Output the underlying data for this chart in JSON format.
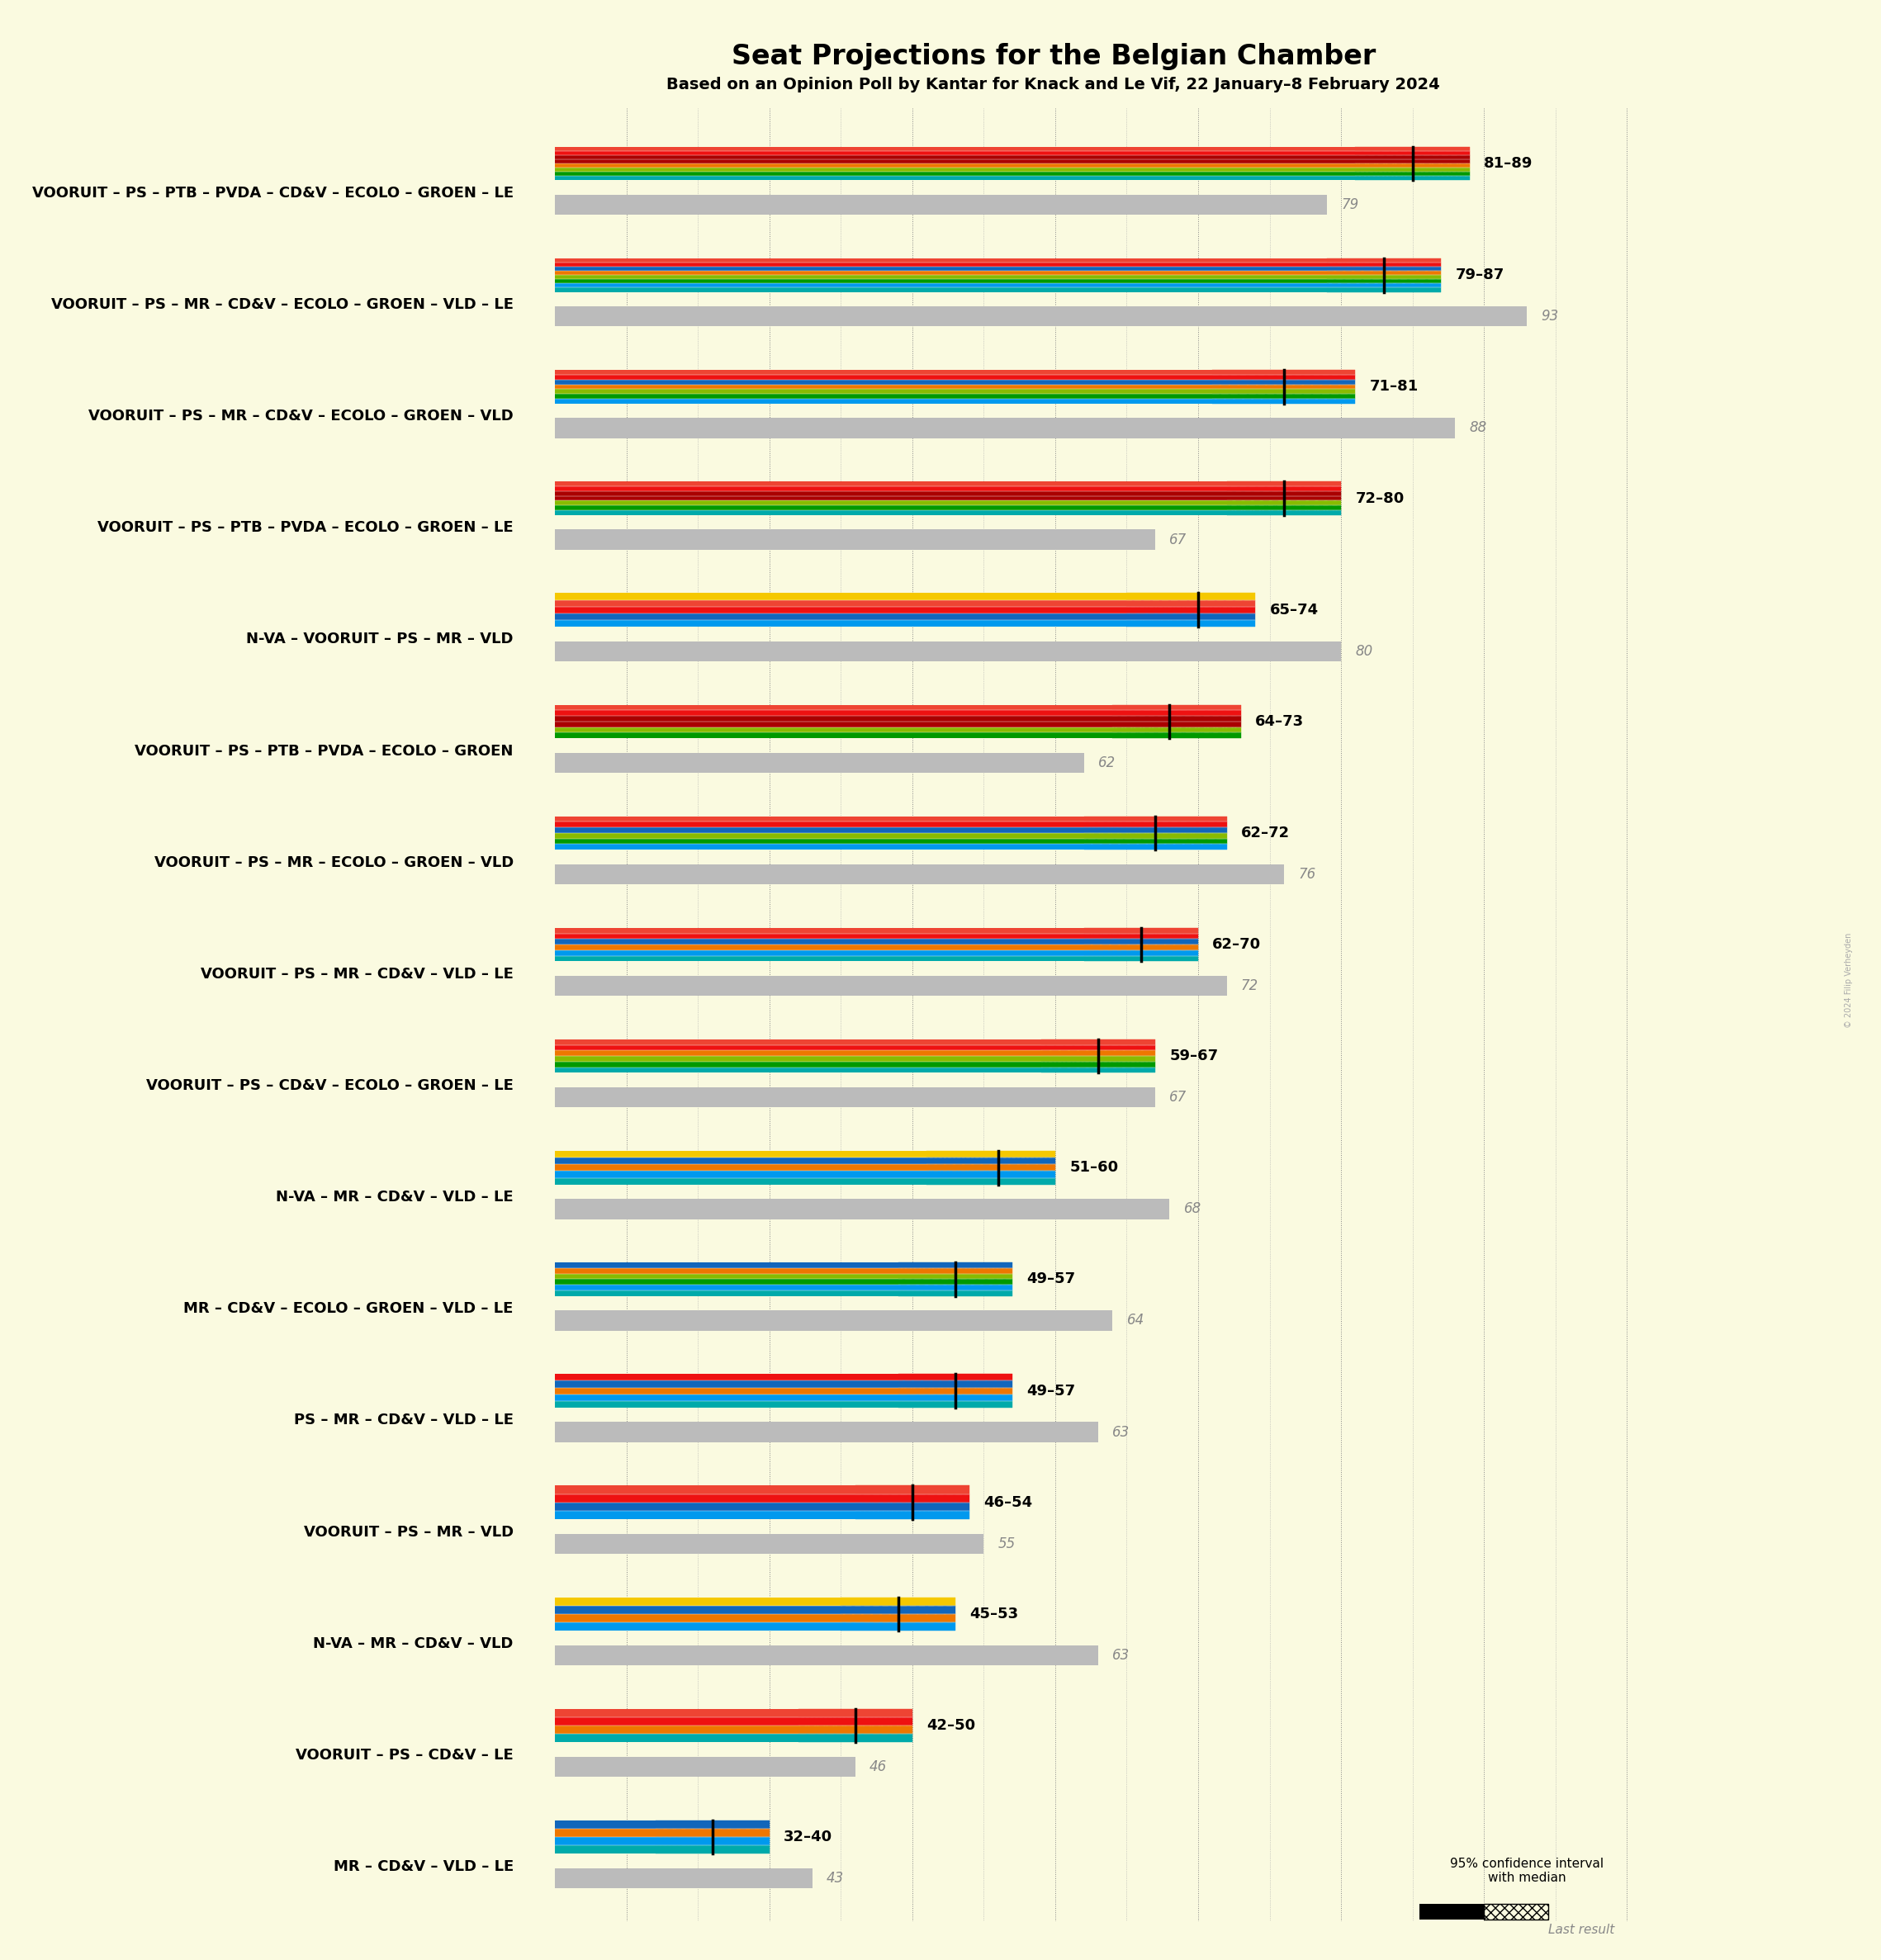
{
  "title": "Seat Projections for the Belgian Chamber",
  "subtitle": "Based on an Opinion Poll by Kantar for Knack and Le Vif, 22 January–8 February 2024",
  "background_color": "#FAFAE0",
  "coalitions": [
    {
      "name": "VOORUIT – PS – PTB – PVDA – CD&V – ECOLO – GROEN – LE",
      "low": 81,
      "high": 89,
      "median": 85,
      "last": 79,
      "underline": false,
      "parties": [
        "VOORUIT",
        "PS",
        "PTB",
        "PVDA",
        "CD&V",
        "ECOLO",
        "GROEN",
        "LE"
      ]
    },
    {
      "name": "VOORUIT – PS – MR – CD&V – ECOLO – GROEN – VLD – LE",
      "low": 79,
      "high": 87,
      "median": 83,
      "last": 93,
      "underline": false,
      "parties": [
        "VOORUIT",
        "PS",
        "MR",
        "CD&V",
        "ECOLO",
        "GROEN",
        "VLD",
        "LE"
      ]
    },
    {
      "name": "VOORUIT – PS – MR – CD&V – ECOLO – GROEN – VLD",
      "low": 71,
      "high": 81,
      "median": 76,
      "last": 88,
      "underline": true,
      "parties": [
        "VOORUIT",
        "PS",
        "MR",
        "CD&V",
        "ECOLO",
        "GROEN",
        "VLD"
      ]
    },
    {
      "name": "VOORUIT – PS – PTB – PVDA – ECOLO – GROEN – LE",
      "low": 72,
      "high": 80,
      "median": 76,
      "last": 67,
      "underline": false,
      "parties": [
        "VOORUIT",
        "PS",
        "PTB",
        "PVDA",
        "ECOLO",
        "GROEN",
        "LE"
      ]
    },
    {
      "name": "N-VA – VOORUIT – PS – MR – VLD",
      "low": 65,
      "high": 74,
      "median": 70,
      "last": 80,
      "underline": false,
      "parties": [
        "N-VA",
        "VOORUIT",
        "PS",
        "MR",
        "VLD"
      ]
    },
    {
      "name": "VOORUIT – PS – PTB – PVDA – ECOLO – GROEN",
      "low": 64,
      "high": 73,
      "median": 68,
      "last": 62,
      "underline": false,
      "parties": [
        "VOORUIT",
        "PS",
        "PTB",
        "PVDA",
        "ECOLO",
        "GROEN"
      ]
    },
    {
      "name": "VOORUIT – PS – MR – ECOLO – GROEN – VLD",
      "low": 62,
      "high": 72,
      "median": 67,
      "last": 76,
      "underline": false,
      "parties": [
        "VOORUIT",
        "PS",
        "MR",
        "ECOLO",
        "GROEN",
        "VLD"
      ]
    },
    {
      "name": "VOORUIT – PS – MR – CD&V – VLD – LE",
      "low": 62,
      "high": 70,
      "median": 66,
      "last": 72,
      "underline": false,
      "parties": [
        "VOORUIT",
        "PS",
        "MR",
        "CD&V",
        "VLD",
        "LE"
      ]
    },
    {
      "name": "VOORUIT – PS – CD&V – ECOLO – GROEN – LE",
      "low": 59,
      "high": 67,
      "median": 63,
      "last": 67,
      "underline": false,
      "parties": [
        "VOORUIT",
        "PS",
        "CD&V",
        "ECOLO",
        "GROEN",
        "LE"
      ]
    },
    {
      "name": "N-VA – MR – CD&V – VLD – LE",
      "low": 51,
      "high": 60,
      "median": 56,
      "last": 68,
      "underline": false,
      "parties": [
        "N-VA",
        "MR",
        "CD&V",
        "VLD",
        "LE"
      ]
    },
    {
      "name": "MR – CD&V – ECOLO – GROEN – VLD – LE",
      "low": 49,
      "high": 57,
      "median": 53,
      "last": 64,
      "underline": false,
      "parties": [
        "MR",
        "CD&V",
        "ECOLO",
        "GROEN",
        "VLD",
        "LE"
      ]
    },
    {
      "name": "PS – MR – CD&V – VLD – LE",
      "low": 49,
      "high": 57,
      "median": 53,
      "last": 63,
      "underline": false,
      "parties": [
        "PS",
        "MR",
        "CD&V",
        "VLD",
        "LE"
      ]
    },
    {
      "name": "VOORUIT – PS – MR – VLD",
      "low": 46,
      "high": 54,
      "median": 50,
      "last": 55,
      "underline": false,
      "parties": [
        "VOORUIT",
        "PS",
        "MR",
        "VLD"
      ]
    },
    {
      "name": "N-VA – MR – CD&V – VLD",
      "low": 45,
      "high": 53,
      "median": 49,
      "last": 63,
      "underline": false,
      "parties": [
        "N-VA",
        "MR",
        "CD&V",
        "VLD"
      ]
    },
    {
      "name": "VOORUIT – PS – CD&V – LE",
      "low": 42,
      "high": 50,
      "median": 46,
      "last": 46,
      "underline": false,
      "parties": [
        "VOORUIT",
        "PS",
        "CD&V",
        "LE"
      ]
    },
    {
      "name": "MR – CD&V – VLD – LE",
      "low": 32,
      "high": 40,
      "median": 36,
      "last": 43,
      "underline": false,
      "parties": [
        "MR",
        "CD&V",
        "VLD",
        "LE"
      ]
    }
  ],
  "party_colors": {
    "N-VA": "#F5C800",
    "PS": "#EE1111",
    "MR": "#1166BB",
    "VOORUIT": "#EE4433",
    "CD&V": "#EE7700",
    "ECOLO": "#88BB00",
    "GROEN": "#009900",
    "VLD": "#0099EE",
    "PTB": "#AA0000",
    "PVDA": "#AA0000",
    "LE": "#00AAAA",
    "VB": "#DD8800"
  },
  "majority_line": 76,
  "x_min": 25,
  "x_max": 100,
  "watermark": "© 2024 Filip Verheyden"
}
